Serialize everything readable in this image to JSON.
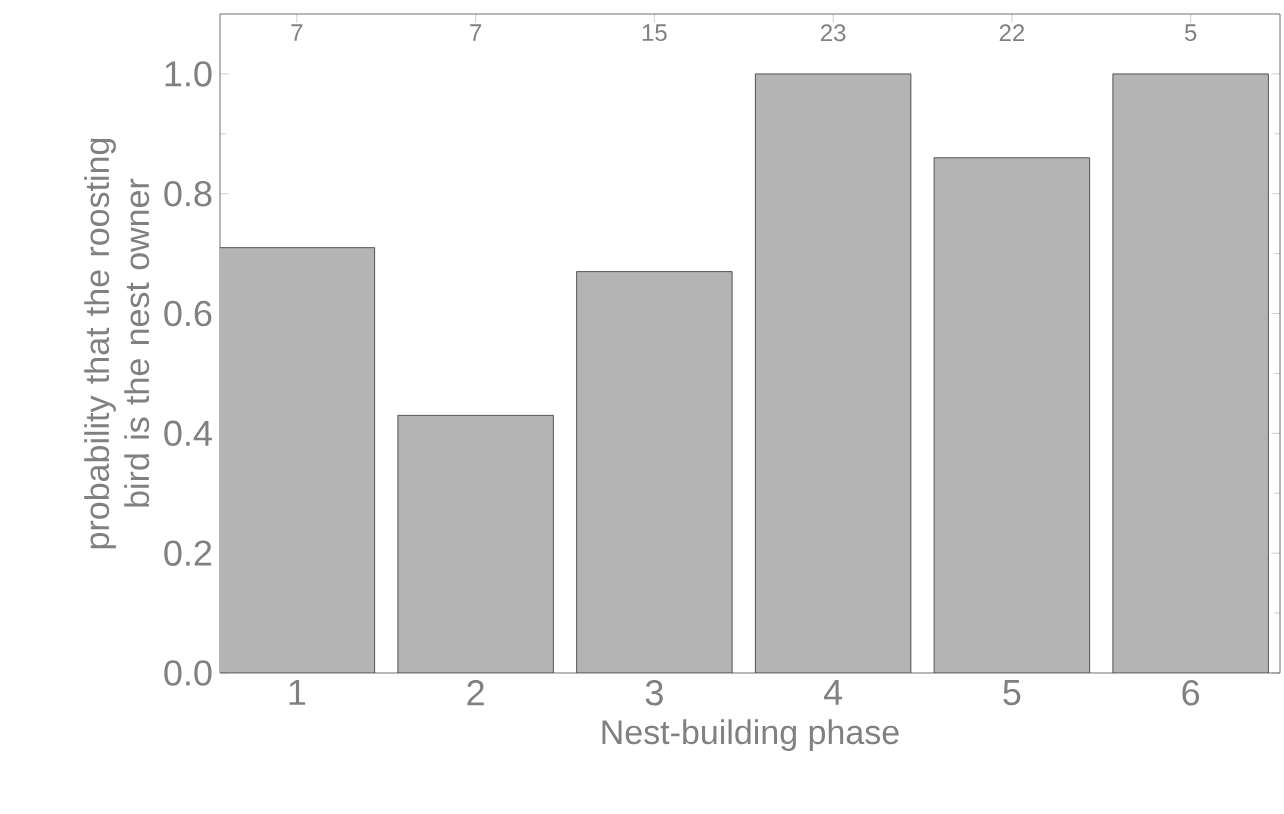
{
  "chart_data": {
    "type": "bar",
    "xlabel": "Nest-building phase",
    "ylabel": "probability that the roosting bird is the nest owner",
    "categories": [
      "1",
      "2",
      "3",
      "4",
      "5",
      "6"
    ],
    "values": [
      0.71,
      0.43,
      0.67,
      1.0,
      0.86,
      1.0
    ],
    "color": "#b4b4b4",
    "ylim": [
      0,
      1.1
    ],
    "yticks": [
      {
        "value": 0,
        "label": "0.0"
      },
      {
        "value": 0.2,
        "label": "0.2"
      },
      {
        "value": 0.4,
        "label": "0.4"
      },
      {
        "value": 0.6,
        "label": "0.6"
      },
      {
        "value": 0.8,
        "label": "0.8"
      },
      {
        "value": 1.0,
        "label": "1.0"
      }
    ],
    "grid": false,
    "annotations": [
      "7",
      "7",
      "15",
      "23",
      "22",
      "5"
    ]
  }
}
